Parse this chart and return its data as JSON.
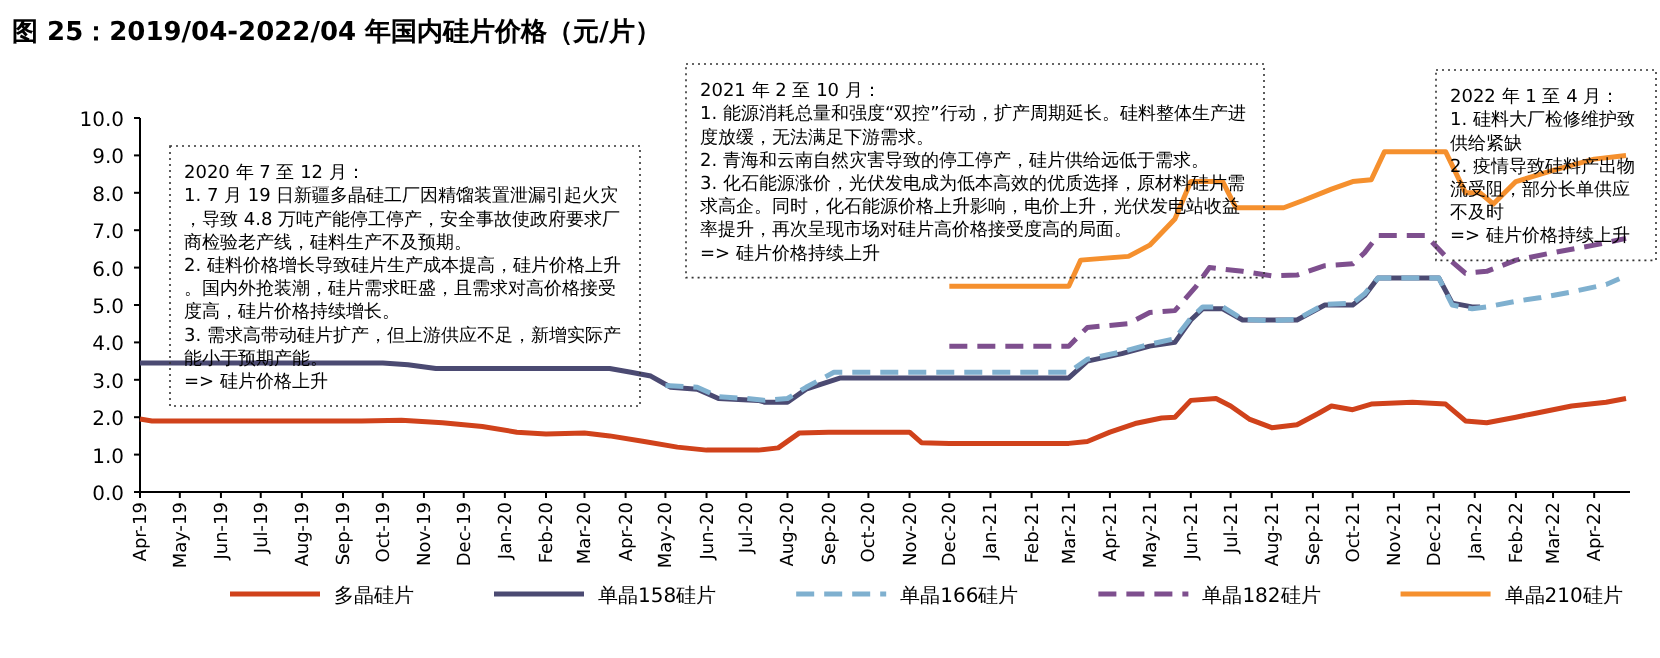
{
  "chart_data": {
    "type": "line",
    "title": "图 25：2019/04-2022/04 年国内硅片价格（元/片）",
    "xlim": [
      "2019-04-01",
      "2022-04-28"
    ],
    "xticks": [
      {
        "value": "2019-04-01",
        "label": "Apr-19"
      },
      {
        "value": "2019-05-01",
        "label": "May-19"
      },
      {
        "value": "2019-06-01",
        "label": "Jun-19"
      },
      {
        "value": "2019-07-01",
        "label": "Jul-19"
      },
      {
        "value": "2019-08-01",
        "label": "Aug-19"
      },
      {
        "value": "2019-09-01",
        "label": "Sep-19"
      },
      {
        "value": "2019-10-01",
        "label": "Oct-19"
      },
      {
        "value": "2019-11-01",
        "label": "Nov-19"
      },
      {
        "value": "2019-12-01",
        "label": "Dec-19"
      },
      {
        "value": "2020-01-01",
        "label": "Jan-20"
      },
      {
        "value": "2020-02-01",
        "label": "Feb-20"
      },
      {
        "value": "2020-03-01",
        "label": "Mar-20"
      },
      {
        "value": "2020-04-01",
        "label": "Apr-20"
      },
      {
        "value": "2020-05-01",
        "label": "May-20"
      },
      {
        "value": "2020-06-01",
        "label": "Jun-20"
      },
      {
        "value": "2020-07-01",
        "label": "Jul-20"
      },
      {
        "value": "2020-08-01",
        "label": "Aug-20"
      },
      {
        "value": "2020-09-01",
        "label": "Sep-20"
      },
      {
        "value": "2020-10-01",
        "label": "Oct-20"
      },
      {
        "value": "2020-11-01",
        "label": "Nov-20"
      },
      {
        "value": "2020-12-01",
        "label": "Dec-20"
      },
      {
        "value": "2021-01-01",
        "label": "Jan-21"
      },
      {
        "value": "2021-02-01",
        "label": "Feb-21"
      },
      {
        "value": "2021-03-01",
        "label": "Mar-21"
      },
      {
        "value": "2021-04-01",
        "label": "Apr-21"
      },
      {
        "value": "2021-05-01",
        "label": "May-21"
      },
      {
        "value": "2021-06-01",
        "label": "Jun-21"
      },
      {
        "value": "2021-07-01",
        "label": "Jul-21"
      },
      {
        "value": "2021-08-01",
        "label": "Aug-21"
      },
      {
        "value": "2021-09-01",
        "label": "Sep-21"
      },
      {
        "value": "2021-10-01",
        "label": "Oct-21"
      },
      {
        "value": "2021-11-01",
        "label": "Nov-21"
      },
      {
        "value": "2021-12-01",
        "label": "Dec-21"
      },
      {
        "value": "2022-01-01",
        "label": "Jan-22"
      },
      {
        "value": "2022-02-01",
        "label": "Feb-22"
      },
      {
        "value": "2022-03-01",
        "label": "Mar-22"
      },
      {
        "value": "2022-04-01",
        "label": "Apr-22"
      }
    ],
    "ylim": [
      0,
      10
    ],
    "yticks": [
      {
        "value": 0,
        "label": "0.0"
      },
      {
        "value": 1,
        "label": "1.0"
      },
      {
        "value": 2,
        "label": "2.0"
      },
      {
        "value": 3,
        "label": "3.0"
      },
      {
        "value": 4,
        "label": "4.0"
      },
      {
        "value": 5,
        "label": "5.0"
      },
      {
        "value": 6,
        "label": "6.0"
      },
      {
        "value": 7,
        "label": "7.0"
      },
      {
        "value": 8,
        "label": "8.0"
      },
      {
        "value": 9,
        "label": "9.0"
      },
      {
        "value": 10,
        "label": "10.0"
      }
    ],
    "legend": "bottom",
    "series": [
      {
        "name": "多晶硅片",
        "color": "#d0421b",
        "line_style": "solid",
        "x": [
          "2019-04-01",
          "2019-04-10",
          "2019-09-15",
          "2019-10-15",
          "2019-11-15",
          "2019-12-15",
          "2020-01-10",
          "2020-02-01",
          "2020-03-01",
          "2020-03-20",
          "2020-04-15",
          "2020-05-10",
          "2020-06-01",
          "2020-07-10",
          "2020-07-25",
          "2020-08-10",
          "2020-09-01",
          "2020-11-01",
          "2020-11-10",
          "2020-12-01",
          "2021-03-01",
          "2021-03-15",
          "2021-04-01",
          "2021-04-20",
          "2021-05-10",
          "2021-05-20",
          "2021-06-01",
          "2021-06-20",
          "2021-07-01",
          "2021-07-15",
          "2021-08-01",
          "2021-08-20",
          "2021-09-05",
          "2021-09-15",
          "2021-10-01",
          "2021-10-15",
          "2021-11-15",
          "2021-12-10",
          "2021-12-25",
          "2022-01-10",
          "2022-02-01",
          "2022-02-15",
          "2022-03-15",
          "2022-04-10",
          "2022-04-25"
        ],
        "values": [
          1.95,
          1.9,
          1.9,
          1.92,
          1.85,
          1.75,
          1.6,
          1.55,
          1.58,
          1.5,
          1.35,
          1.2,
          1.12,
          1.12,
          1.18,
          1.58,
          1.6,
          1.6,
          1.32,
          1.3,
          1.3,
          1.35,
          1.6,
          1.83,
          1.98,
          2.0,
          2.45,
          2.5,
          2.3,
          1.95,
          1.72,
          1.8,
          2.1,
          2.3,
          2.2,
          2.35,
          2.4,
          2.35,
          1.9,
          1.85,
          2.0,
          2.1,
          2.3,
          2.4,
          2.5
        ]
      },
      {
        "name": "单晶158硅片",
        "color": "#4b4a72",
        "line_style": "solid",
        "x": [
          "2019-04-01",
          "2019-10-01",
          "2019-10-20",
          "2019-11-10",
          "2020-03-20",
          "2020-04-05",
          "2020-04-20",
          "2020-05-05",
          "2020-05-25",
          "2020-06-10",
          "2020-07-10",
          "2020-07-15",
          "2020-08-01",
          "2020-08-15",
          "2020-09-10",
          "2021-03-01",
          "2021-03-15",
          "2021-04-10",
          "2021-05-01",
          "2021-05-20",
          "2021-06-01",
          "2021-06-10",
          "2021-06-25",
          "2021-07-10",
          "2021-08-20",
          "2021-09-10",
          "2021-10-01",
          "2021-10-10",
          "2021-10-20",
          "2021-12-05",
          "2021-12-15",
          "2021-12-30",
          "2022-01-05"
        ],
        "values": [
          3.45,
          3.45,
          3.4,
          3.3,
          3.3,
          3.2,
          3.1,
          2.8,
          2.75,
          2.5,
          2.45,
          2.4,
          2.4,
          2.75,
          3.05,
          3.05,
          3.5,
          3.7,
          3.9,
          4.0,
          4.6,
          4.9,
          4.9,
          4.6,
          4.6,
          5.0,
          5.0,
          5.25,
          5.72,
          5.72,
          5.05,
          4.95,
          4.95
        ]
      },
      {
        "name": "单晶166硅片",
        "color": "#7fb0cf",
        "line_style": "dashed",
        "x": [
          "2020-05-01",
          "2020-05-25",
          "2020-06-10",
          "2020-07-01",
          "2020-07-15",
          "2020-08-01",
          "2020-08-15",
          "2020-09-05",
          "2021-03-01",
          "2021-03-15",
          "2021-04-10",
          "2021-05-01",
          "2021-05-20",
          "2021-06-01",
          "2021-06-10",
          "2021-06-25",
          "2021-07-10",
          "2021-08-01",
          "2021-08-20",
          "2021-09-10",
          "2021-10-01",
          "2021-10-10",
          "2021-10-20",
          "2021-12-05",
          "2021-12-15",
          "2021-12-30",
          "2022-01-10",
          "2022-02-01",
          "2022-02-20",
          "2022-03-15",
          "2022-04-10",
          "2022-04-20"
        ],
        "values": [
          2.85,
          2.8,
          2.55,
          2.5,
          2.45,
          2.5,
          2.8,
          3.2,
          3.2,
          3.55,
          3.75,
          3.95,
          4.1,
          4.65,
          4.95,
          4.95,
          4.62,
          4.58,
          4.62,
          5.02,
          5.05,
          5.3,
          5.72,
          5.72,
          5.0,
          4.9,
          4.95,
          5.1,
          5.2,
          5.35,
          5.55,
          5.7
        ]
      },
      {
        "name": "单晶182硅片",
        "color": "#7e4f8e",
        "line_style": "dashed",
        "x": [
          "2020-12-01",
          "2021-03-01",
          "2021-03-15",
          "2021-04-15",
          "2021-05-01",
          "2021-05-20",
          "2021-06-05",
          "2021-06-15",
          "2021-07-10",
          "2021-08-01",
          "2021-08-20",
          "2021-09-10",
          "2021-10-01",
          "2021-10-10",
          "2021-10-20",
          "2021-11-25",
          "2021-12-10",
          "2021-12-25",
          "2022-01-10",
          "2022-02-01",
          "2022-03-01",
          "2022-04-01",
          "2022-04-25"
        ],
        "values": [
          3.9,
          3.9,
          4.4,
          4.5,
          4.8,
          4.85,
          5.5,
          6.0,
          5.9,
          5.78,
          5.8,
          6.05,
          6.1,
          6.4,
          6.86,
          6.86,
          6.3,
          5.85,
          5.9,
          6.2,
          6.4,
          6.6,
          6.78
        ]
      },
      {
        "name": "单晶210硅片",
        "color": "#f5902e",
        "line_style": "solid",
        "x": [
          "2020-12-01",
          "2021-03-01",
          "2021-03-10",
          "2021-04-15",
          "2021-05-01",
          "2021-05-20",
          "2021-06-01",
          "2021-06-25",
          "2021-07-05",
          "2021-08-10",
          "2021-08-25",
          "2021-09-15",
          "2021-10-01",
          "2021-10-15",
          "2021-10-25",
          "2021-12-10",
          "2021-12-25",
          "2022-01-05",
          "2022-01-15",
          "2022-02-01",
          "2022-03-01",
          "2022-04-01",
          "2022-04-25"
        ],
        "values": [
          5.5,
          5.5,
          6.2,
          6.3,
          6.6,
          7.3,
          8.3,
          8.3,
          7.6,
          7.6,
          7.8,
          8.1,
          8.3,
          8.35,
          9.1,
          9.1,
          8.0,
          8.0,
          7.7,
          8.3,
          8.6,
          8.9,
          9.0
        ]
      }
    ],
    "annotations": [
      "2020 年 7 至 12 月：\n1. 7 月 19 日新疆多晶硅工厂因精馏装置泄漏引起火灾，导致 4.8 万吨产能停工停产，安全事故使政府要求厂商检验老产线，硅料生产不及预期。\n2. 硅料价格增长导致硅片生产成本提高，硅片价格上升。国内外抢装潮，硅片需求旺盛，且需求对高价格接受度高，硅片价格持续增长。\n3. 需求高带动硅片扩产，但上游供应不足，新增实际产能小于预期产能。\n=> 硅片价格上升",
      "2021 年 2 至 10 月：\n1. 能源消耗总量和强度“双控”行动，扩产周期延长。硅料整体生产进度放缓，无法满足下游需求。\n2. 青海和云南自然灾害导致的停工停产，硅片供给远低于需求。\n3. 化石能源涨价，光伏发电成为低本高效的优质选择，原材料硅片需求高企。同时，化石能源价格上升影响，电价上升，光伏发电站收益率提升，再次呈现市场对硅片高价格接受度高的局面。\n=> 硅片价格持续上升",
      "2022 年 1 至 4 月：\n1. 硅料大厂检修维护致供给紧缺\n2. 疫情导致硅料产出物流受阻，部分长单供应不及时\n=> 硅片价格持续上升"
    ]
  }
}
